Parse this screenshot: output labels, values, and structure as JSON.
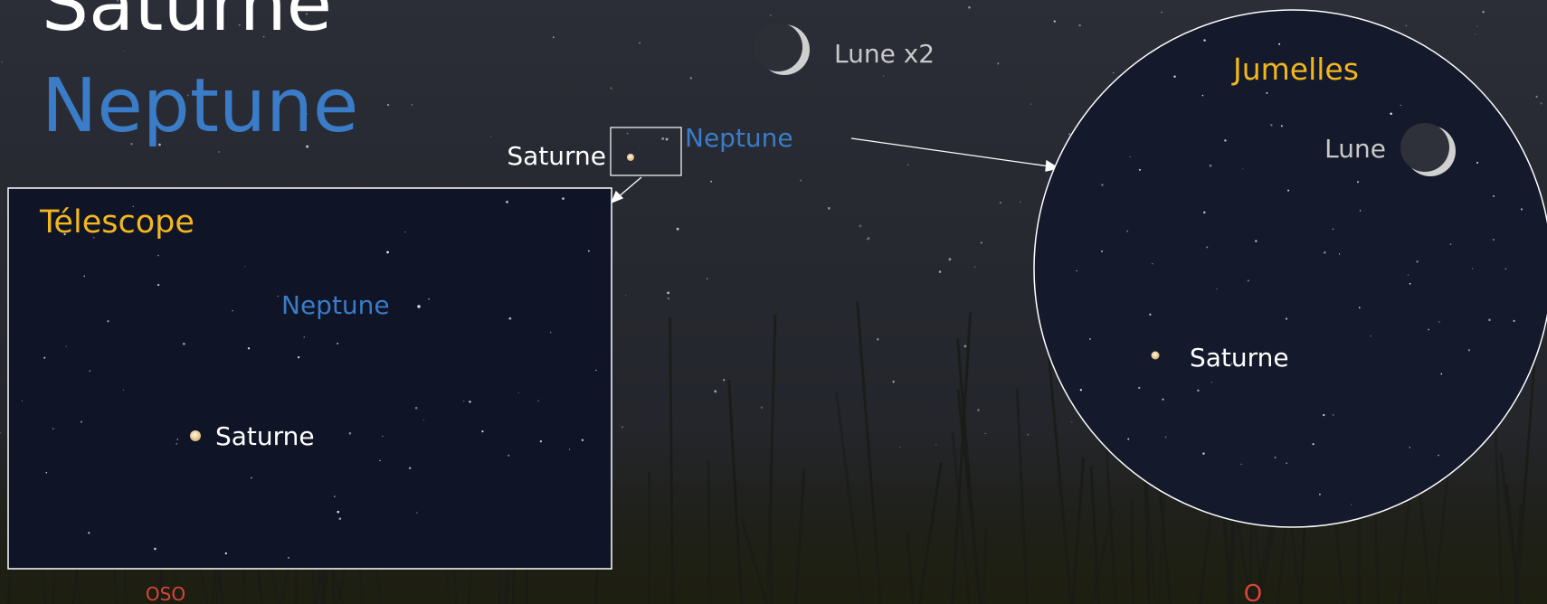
{
  "title": {
    "line1": "Saturne",
    "line2": "Neptune"
  },
  "sky": {
    "moon_label": "Lune x2",
    "saturn_label": "Saturne",
    "neptune_label": "Neptune"
  },
  "telescope": {
    "title": "Télescope",
    "neptune_label": "Neptune",
    "saturn_label": "Saturne"
  },
  "binoculars": {
    "title": "Jumelles",
    "moon_label": "Lune",
    "saturn_label": "Saturne"
  },
  "compass": {
    "left": "OSO",
    "right": "O"
  }
}
